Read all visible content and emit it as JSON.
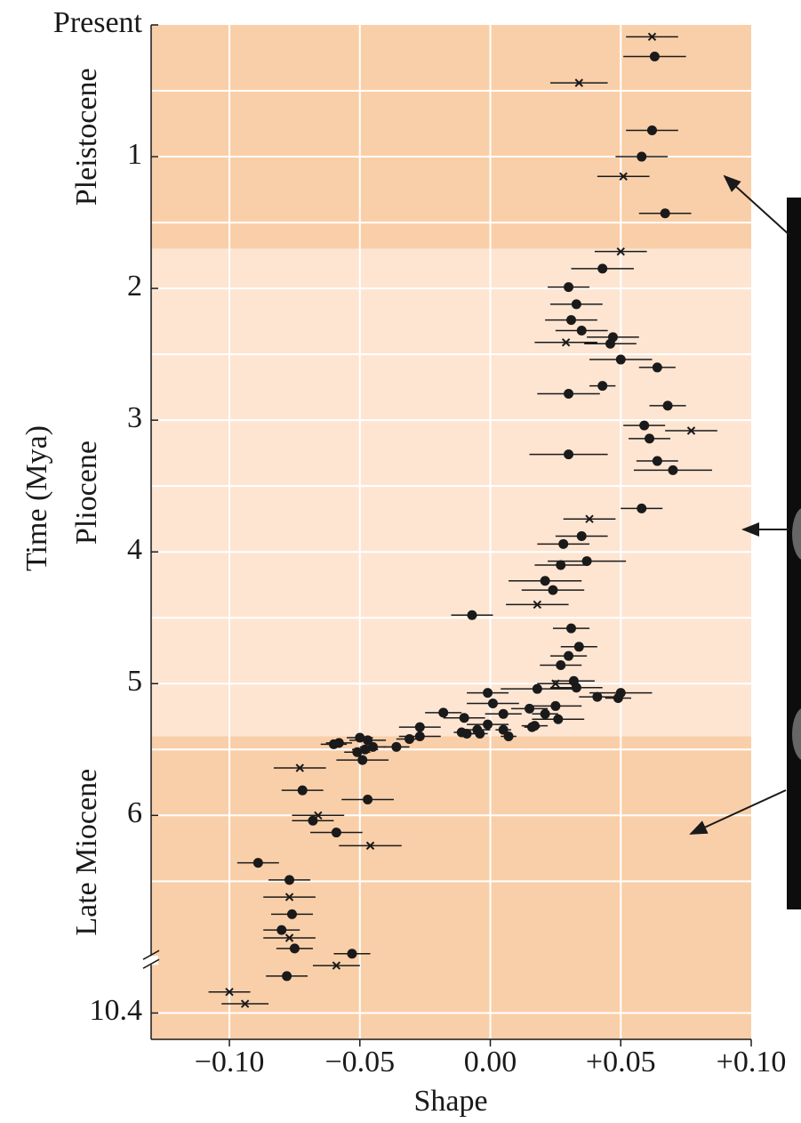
{
  "chart_data": {
    "type": "scatter",
    "xlabel": "Shape",
    "ylabel": "Time (Mya)",
    "xlim": [
      -0.13,
      0.1
    ],
    "xticks": [
      {
        "value": -0.1,
        "label": "−0.10"
      },
      {
        "value": -0.05,
        "label": "−0.05"
      },
      {
        "value": 0,
        "label": "0.00"
      },
      {
        "value": 0.05,
        "label": "+0.05"
      },
      {
        "value": 0.1,
        "label": "+0.10"
      }
    ],
    "ylim": [
      0,
      10.6
    ],
    "y_inverted": true,
    "axis_break": [
      7.1,
      10.0
    ],
    "yticks": [
      {
        "value": 0,
        "label": "Present"
      },
      1,
      2,
      3,
      4,
      5,
      6,
      10.4
    ],
    "yminorgrid": [
      0.5,
      1.5,
      2.5,
      3.5,
      4.5,
      5.5,
      6.5
    ],
    "grid": true,
    "grid_color": "#ffffff",
    "periods": [
      {
        "label": "Pleistocene",
        "from": 0,
        "to": 1.7,
        "color": "#f9cfa9"
      },
      {
        "label": "Pliocene",
        "from": 1.7,
        "to": 5.4,
        "color": "#fde5d2"
      },
      {
        "label": "Late Miocene",
        "from": 5.4,
        "to": 10.6,
        "color": "#f9cfa9"
      }
    ],
    "series": [
      {
        "marker": "dot",
        "color": "#1a1a1a",
        "x": [
          0.063,
          0.062,
          0.058,
          0.067,
          0.043,
          0.03,
          0.033,
          0.031,
          0.035,
          0.047,
          0.046,
          0.05,
          0.064,
          0.043,
          0.03,
          0.068,
          0.059,
          0.061,
          0.03,
          0.064,
          0.07,
          0.058,
          0.035,
          0.028,
          0.037,
          0.027,
          0.021,
          0.024,
          -0.007,
          0.031,
          0.034,
          0.03,
          0.027,
          0.032,
          0.033,
          0.018,
          -0.001,
          0.05,
          0.041,
          0.049,
          0.001,
          0.025,
          0.015,
          0.021,
          0.005,
          -0.018,
          -0.01,
          0.026,
          0.017,
          -0.001,
          -0.027,
          0.016,
          -0.005,
          0.005,
          -0.009,
          -0.004,
          -0.011,
          0.007,
          -0.027,
          -0.031,
          -0.036,
          -0.058,
          -0.06,
          -0.05,
          -0.047,
          -0.048,
          -0.051,
          -0.045,
          -0.049,
          -0.072,
          -0.047,
          -0.068,
          -0.059,
          -0.089,
          -0.077,
          -0.076,
          -0.08,
          -0.075,
          -0.053,
          -0.078
        ],
        "y": [
          0.24,
          0.8,
          1.0,
          1.43,
          1.85,
          1.99,
          2.12,
          2.24,
          2.32,
          2.37,
          2.42,
          2.54,
          2.6,
          2.74,
          2.8,
          2.89,
          3.04,
          3.14,
          3.26,
          3.31,
          3.38,
          3.67,
          3.88,
          3.94,
          4.07,
          4.1,
          4.22,
          4.29,
          4.48,
          4.58,
          4.72,
          4.79,
          4.86,
          4.98,
          5.03,
          5.04,
          5.07,
          5.07,
          5.1,
          5.11,
          5.15,
          5.17,
          5.19,
          5.23,
          5.23,
          5.22,
          5.26,
          5.27,
          5.32,
          5.31,
          5.33,
          5.33,
          5.35,
          5.35,
          5.38,
          5.38,
          5.37,
          5.4,
          5.4,
          5.42,
          5.48,
          5.45,
          5.46,
          5.41,
          5.43,
          5.5,
          5.52,
          5.48,
          5.58,
          5.81,
          5.88,
          6.04,
          6.13,
          6.36,
          6.49,
          6.75,
          6.87,
          7.01,
          7.05,
          10.12
        ],
        "xerr": [
          0.012,
          0.01,
          0.01,
          0.01,
          0.012,
          0.008,
          0.01,
          0.01,
          0.01,
          0.01,
          0.01,
          0.012,
          0.007,
          0.005,
          0.012,
          0.007,
          0.008,
          0.008,
          0.015,
          0.008,
          0.015,
          0.008,
          0.01,
          0.01,
          0.015,
          0.01,
          0.014,
          0.012,
          0.008,
          0.007,
          0.007,
          0.007,
          0.008,
          0.008,
          0.01,
          0.014,
          0.008,
          0.012,
          0.007,
          0.005,
          0.01,
          0.01,
          0.007,
          0.005,
          0.007,
          0.007,
          0.008,
          0.01,
          0.005,
          0.008,
          0.008,
          0.003,
          0.005,
          0.003,
          0.003,
          0.003,
          0.003,
          0.003,
          0.008,
          0.005,
          0.005,
          0.005,
          0.005,
          0.005,
          0.007,
          0.005,
          0.005,
          0.005,
          0.01,
          0.008,
          0.01,
          0.008,
          0.01,
          0.008,
          0.008,
          0.008,
          0.007,
          0.007,
          0.007,
          0.008
        ]
      },
      {
        "marker": "cross",
        "color": "#1a1a1a",
        "x": [
          0.062,
          0.034,
          0.051,
          0.05,
          0.029,
          0.038,
          0.018,
          0.025,
          0.077,
          -0.073,
          -0.066,
          -0.046,
          -0.077,
          -0.077,
          -0.059,
          -0.1,
          -0.094
        ],
        "y": [
          0.09,
          0.44,
          1.15,
          1.72,
          2.41,
          3.75,
          4.4,
          5.0,
          3.08,
          5.64,
          6.0,
          6.23,
          6.62,
          6.93,
          10.04,
          10.24,
          10.33
        ],
        "xerr": [
          0.01,
          0.011,
          0.01,
          0.01,
          0.012,
          0.01,
          0.012,
          0.007,
          0.01,
          0.01,
          0.01,
          0.012,
          0.01,
          0.01,
          0.009,
          0.008,
          0.009
        ]
      }
    ]
  }
}
